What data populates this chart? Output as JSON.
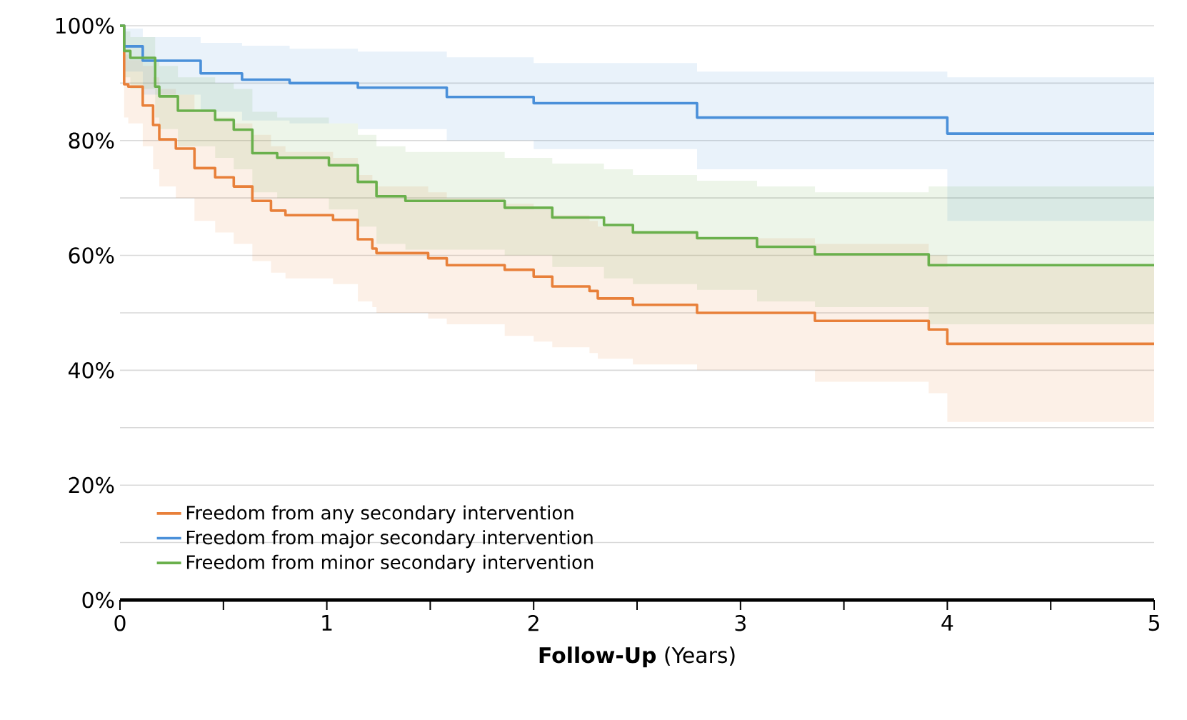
{
  "chart_data": {
    "type": "step",
    "xlabel": "**Follow-Up** (Years)",
    "xlim": [
      0,
      5
    ],
    "xticks": [
      0,
      {
        "value": 0.5,
        "label": null
      },
      1,
      {
        "value": 1.5,
        "label": null
      },
      2,
      {
        "value": 2.5,
        "label": null
      },
      3,
      {
        "value": 3.5,
        "label": null
      },
      4,
      {
        "value": 4.5,
        "label": null
      },
      5
    ],
    "ylim": [
      0,
      100
    ],
    "yticks": [
      {
        "value": 0,
        "label": "0%"
      },
      {
        "value": 10,
        "label": null
      },
      {
        "value": 20,
        "label": "20%"
      },
      {
        "value": 30,
        "label": null
      },
      {
        "value": 40,
        "label": "40%"
      },
      {
        "value": 50,
        "label": null
      },
      {
        "value": 60,
        "label": "60%"
      },
      {
        "value": 70,
        "label": null
      },
      {
        "value": 80,
        "label": "80%"
      },
      {
        "value": 90,
        "label": null
      },
      {
        "value": 100,
        "label": "100%"
      }
    ],
    "grid": "y",
    "legend": "bottom left",
    "marker": "none",
    "line_style": "solid",
    "series": [
      {
        "name": "Freedom from any secondary intervention",
        "color": "#e8803a",
        "x": [
          0,
          0.02,
          0.04,
          0.11,
          0.16,
          0.19,
          0.27,
          0.36,
          0.46,
          0.55,
          0.64,
          0.73,
          0.8,
          1.03,
          1.15,
          1.22,
          1.24,
          1.49,
          1.58,
          1.86,
          2.0,
          2.09,
          2.27,
          2.31,
          2.48,
          2.79,
          3.36,
          3.91,
          4.0,
          5
        ],
        "values": [
          100,
          89.8,
          89.4,
          86.1,
          82.7,
          80.2,
          78.6,
          75.2,
          73.6,
          72.0,
          69.5,
          67.8,
          67.0,
          66.2,
          62.8,
          61.2,
          60.4,
          59.5,
          58.3,
          57.5,
          56.3,
          54.6,
          53.8,
          52.5,
          51.4,
          50.0,
          48.6,
          47.1,
          44.6,
          44.6
        ],
        "lower": [
          100,
          84,
          83,
          79,
          75,
          72,
          70,
          66,
          64,
          62,
          59,
          57,
          56,
          55,
          52,
          51,
          50,
          49,
          48,
          46,
          45,
          44,
          43,
          42,
          41,
          40,
          38,
          36,
          31,
          31
        ],
        "upper": [
          100,
          95,
          94,
          93,
          91,
          89,
          88,
          85,
          84,
          83,
          81,
          79,
          78,
          77,
          74,
          73,
          72,
          71,
          70,
          69,
          68,
          67,
          66,
          65,
          64,
          63,
          62,
          60,
          58,
          58
        ]
      },
      {
        "name": "Freedom from major secondary intervention",
        "color": "#4a90d9",
        "x": [
          0,
          0.02,
          0.11,
          0.39,
          0.59,
          0.82,
          1.15,
          1.58,
          2.0,
          2.79,
          4.0,
          5
        ],
        "values": [
          100,
          96.4,
          93.9,
          91.7,
          90.6,
          90.0,
          89.2,
          87.6,
          86.5,
          84.0,
          81.2,
          81.2
        ],
        "lower": [
          100,
          92,
          88,
          85,
          83.5,
          83,
          82,
          80,
          78.5,
          75,
          66,
          66
        ],
        "upper": [
          100,
          99.5,
          98,
          97,
          96.5,
          96,
          95.5,
          94.5,
          93.5,
          92,
          91,
          91
        ]
      },
      {
        "name": "Freedom from minor secondary intervention",
        "color": "#6ab04c",
        "x": [
          0,
          0.02,
          0.05,
          0.17,
          0.19,
          0.28,
          0.46,
          0.55,
          0.64,
          0.76,
          1.01,
          1.15,
          1.24,
          1.38,
          1.86,
          2.09,
          2.34,
          2.48,
          2.79,
          3.08,
          3.36,
          3.91,
          5
        ],
        "values": [
          100,
          95.6,
          94.4,
          89.4,
          87.7,
          85.2,
          83.6,
          81.9,
          77.8,
          77.0,
          75.7,
          72.8,
          70.3,
          69.5,
          68.3,
          66.6,
          65.3,
          64.0,
          63.0,
          61.5,
          60.2,
          58.3,
          58.3
        ],
        "lower": [
          100,
          91,
          89,
          84,
          82,
          79,
          77,
          75,
          71,
          70,
          68,
          65,
          62,
          61,
          60,
          58,
          56,
          55,
          54,
          52,
          51,
          48,
          48
        ],
        "upper": [
          100,
          99,
          98,
          94,
          93,
          91,
          90,
          89,
          85,
          84,
          83,
          81,
          79,
          78,
          77,
          76,
          75,
          74,
          73,
          72,
          71,
          72,
          72
        ]
      }
    ]
  }
}
